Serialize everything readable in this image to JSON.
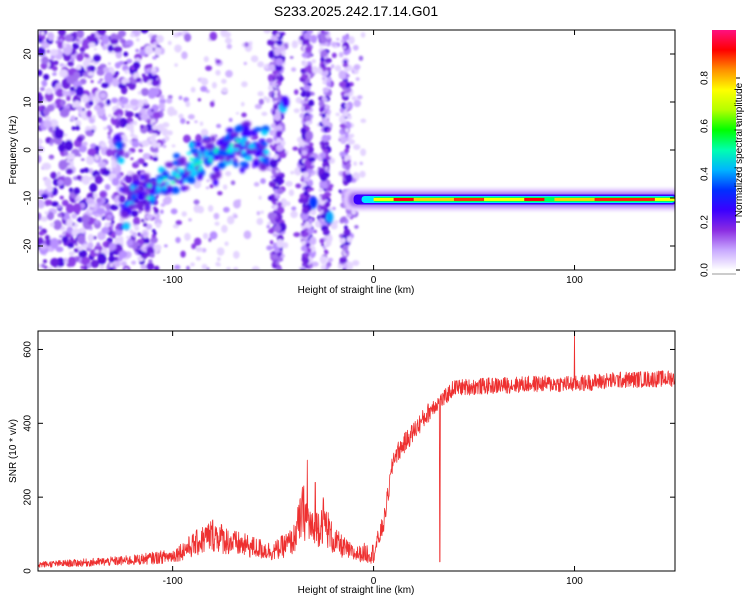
{
  "figure_title": "S233.2025.242.17.14.G01",
  "chart_data": [
    {
      "type": "heatmap",
      "title": "S233.2025.242.17.14.G01",
      "xlabel": "Height of straight line (km)",
      "ylabel": "Frequency (Hz)",
      "xlim": [
        -167,
        150
      ],
      "ylim": [
        -25,
        25
      ],
      "xticks": [
        -100,
        0,
        100
      ],
      "xtick_labels": [
        "-100",
        "0",
        "100"
      ],
      "yticks": [
        -20,
        -10,
        0,
        10,
        20
      ],
      "ytick_labels": [
        "-20",
        "-10",
        "0",
        "10",
        "20"
      ],
      "colorbar": {
        "label": "Normalized spectral amplitude",
        "range": [
          0,
          1
        ],
        "ticks": [
          0.0,
          0.2,
          0.4,
          0.6,
          0.8
        ],
        "tick_labels": [
          "0.0",
          "0.2",
          "0.4",
          "0.6",
          "0.8"
        ],
        "colors": [
          "#ffffff",
          "#c8a8ff",
          "#8a2be2",
          "#3a00ff",
          "#0030ff",
          "#00b4ff",
          "#00ffb0",
          "#00ff00",
          "#b4ff00",
          "#ffff00",
          "#ff9000",
          "#ff0000",
          "#ff1080"
        ]
      },
      "feature": {
        "carrier_frequency_hz": -10.3,
        "strong_line_start_km": 0,
        "strong_line_end_km": 150,
        "diffuse_track": [
          {
            "x": -125,
            "y": -12
          },
          {
            "x": -110,
            "y": -8
          },
          {
            "x": -95,
            "y": -4
          },
          {
            "x": -80,
            "y": -1
          },
          {
            "x": -70,
            "y": 1
          },
          {
            "x": -60,
            "y": 0
          }
        ]
      }
    },
    {
      "type": "line",
      "xlabel": "Height of straight line (km)",
      "ylabel": "SNR (10 * v/v)",
      "xlim": [
        -167,
        150
      ],
      "ylim": [
        0,
        650
      ],
      "xticks": [
        -100,
        0,
        100
      ],
      "xtick_labels": [
        "-100",
        "0",
        "100"
      ],
      "yticks": [
        0,
        200,
        400,
        600
      ],
      "ytick_labels": [
        "0",
        "200",
        "400",
        "600"
      ],
      "color": "#ee3030",
      "series": [
        {
          "name": "SNR",
          "x": [
            -167,
            -140,
            -120,
            -100,
            -90,
            -80,
            -70,
            -60,
            -50,
            -40,
            -35,
            -30,
            -25,
            -20,
            -10,
            0,
            5,
            10,
            20,
            30,
            35,
            40,
            60,
            80,
            100,
            120,
            150
          ],
          "y": [
            15,
            20,
            25,
            35,
            60,
            85,
            65,
            55,
            45,
            70,
            140,
            90,
            120,
            70,
            40,
            40,
            120,
            300,
            370,
            440,
            460,
            490,
            495,
            500,
            500,
            510,
            515
          ],
          "spikes": [
            {
              "x": -33,
              "y": 300
            },
            {
              "x": -29,
              "y": 240
            },
            {
              "x": 33,
              "y": 25
            },
            {
              "x": 100,
              "y": 650
            }
          ]
        }
      ]
    }
  ]
}
